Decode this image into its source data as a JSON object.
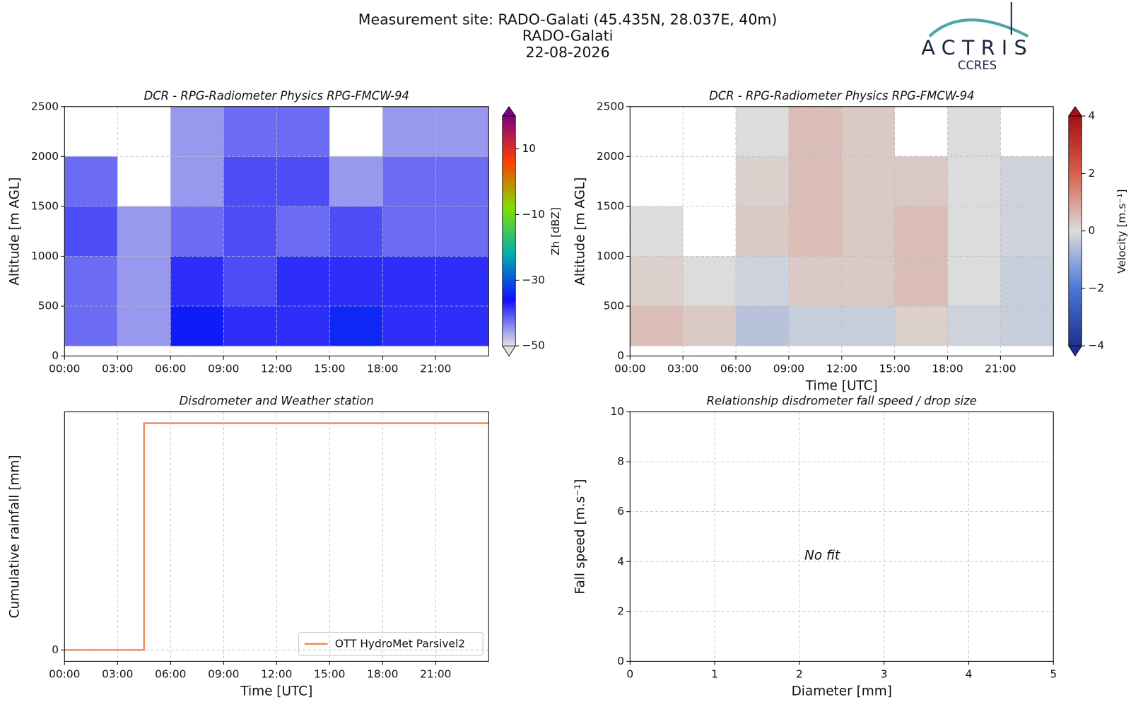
{
  "header": {
    "title": [
      "Measurement site: RADO-Galati (45.435N, 28.037E, 40m)",
      "RADO-Galati",
      "22-08-2026"
    ],
    "logo": "ACTRIS",
    "logo_subtitle": "CCRES"
  },
  "chart_data": [
    {
      "type": "heatmap",
      "title": "DCR - RPG-Radiometer Physics RPG-FMCW-94",
      "ylabel": "Altitude [m AGL]",
      "xlim": [
        0,
        24
      ],
      "xticks": [
        {
          "value": 0,
          "label": "00:00"
        },
        {
          "value": 3,
          "label": "03:00"
        },
        {
          "value": 6,
          "label": "06:00"
        },
        {
          "value": 9,
          "label": "09:00"
        },
        {
          "value": 12,
          "label": "12:00"
        },
        {
          "value": 15,
          "label": "15:00"
        },
        {
          "value": 18,
          "label": "18:00"
        },
        {
          "value": 21,
          "label": "21:00"
        }
      ],
      "ylim": [
        0,
        2500
      ],
      "yticks": [
        0,
        500,
        1000,
        1500,
        2000,
        2500
      ],
      "grid": true,
      "x_edges": [
        0,
        3,
        6,
        9,
        12,
        15,
        18,
        21,
        24
      ],
      "y_edges": [
        100,
        500,
        1000,
        1500,
        2000,
        2500
      ],
      "values": [
        [
          -42,
          -45,
          -35,
          -38,
          -38,
          -34,
          -38,
          -38
        ],
        [
          -42,
          -45,
          -38,
          -40,
          -38,
          -38,
          -38,
          -38
        ],
        [
          -40,
          -45,
          -42,
          -40,
          -42,
          -40,
          -42,
          -42
        ],
        [
          -42,
          null,
          -45,
          -40,
          -40,
          -45,
          -42,
          -42
        ],
        [
          null,
          null,
          -45,
          -42,
          -42,
          null,
          -45,
          -45
        ]
      ],
      "zlabel": "Zh [dBZ]",
      "zlim": [
        -50,
        20
      ],
      "zticks": [
        {
          "value": -50,
          "label": "−50"
        },
        {
          "value": -30,
          "label": "−30"
        },
        {
          "value": -10,
          "label": "−10"
        },
        10
      ],
      "colors": [
        "#e4e4e4",
        "#1010ff",
        "#00b0b0",
        "#80e000",
        "#ff4000",
        "#800080"
      ]
    },
    {
      "type": "heatmap",
      "title": "DCR - RPG-Radiometer Physics RPG-FMCW-94",
      "ylabel": "Altitude [m AGL]",
      "xlabel": "Time [UTC]",
      "xlim": [
        0,
        24
      ],
      "xticks": [
        {
          "value": 0,
          "label": "00:00"
        },
        {
          "value": 3,
          "label": "03:00"
        },
        {
          "value": 6,
          "label": "06:00"
        },
        {
          "value": 9,
          "label": "09:00"
        },
        {
          "value": 12,
          "label": "12:00"
        },
        {
          "value": 15,
          "label": "15:00"
        },
        {
          "value": 18,
          "label": "18:00"
        },
        {
          "value": 21,
          "label": "21:00"
        }
      ],
      "ylim": [
        0,
        2500
      ],
      "yticks": [
        0,
        500,
        1000,
        1500,
        2000,
        2500
      ],
      "grid": true,
      "x_edges": [
        0,
        3,
        6,
        9,
        12,
        15,
        18,
        21,
        24
      ],
      "y_edges": [
        100,
        500,
        1000,
        1500,
        2000,
        2500
      ],
      "values": [
        [
          0.5,
          0.3,
          -0.5,
          -0.3,
          -0.3,
          0.2,
          -0.2,
          -0.3
        ],
        [
          0.2,
          0,
          -0.2,
          0.3,
          0.3,
          0.5,
          0,
          -0.3
        ],
        [
          0,
          null,
          0.3,
          0.5,
          0.3,
          0.5,
          0,
          -0.2
        ],
        [
          null,
          null,
          0.2,
          0.5,
          0.3,
          0.3,
          0,
          -0.2
        ],
        [
          null,
          null,
          0,
          0.5,
          0.3,
          null,
          0,
          null
        ]
      ],
      "zlabel": "Velocity [m.s⁻¹]",
      "zlim": [
        -4,
        4
      ],
      "zticks": [
        {
          "value": -4,
          "label": "−4"
        },
        {
          "value": -2,
          "label": "−2"
        },
        0,
        2,
        4
      ],
      "colors": [
        "#1f2f8f",
        "#4a78d8",
        "#dcdcdc",
        "#d8604a",
        "#a50f15"
      ]
    },
    {
      "type": "line",
      "title": "Disdrometer and Weather station",
      "ylabel": "Cumulative rainfall [mm]",
      "xlabel": "Time [UTC]",
      "xlim": [
        0,
        24
      ],
      "xticks": [
        {
          "value": 0,
          "label": "00:00"
        },
        {
          "value": 3,
          "label": "03:00"
        },
        {
          "value": 6,
          "label": "06:00"
        },
        {
          "value": 9,
          "label": "09:00"
        },
        {
          "value": 12,
          "label": "12:00"
        },
        {
          "value": 15,
          "label": "15:00"
        },
        {
          "value": 18,
          "label": "18:00"
        },
        {
          "value": 21,
          "label": "21:00"
        }
      ],
      "ylim": [
        -0.01,
        0.21
      ],
      "yticks": [
        0
      ],
      "grid": true,
      "legend": "lower right",
      "x": [
        0,
        4.5,
        4.5,
        24
      ],
      "series": [
        {
          "name": "OTT HydroMet Parsivel2",
          "color": "#f08a5d",
          "values": [
            0,
            0,
            0.2,
            0.2
          ]
        }
      ]
    },
    {
      "type": "scatter",
      "title": "Relationship disdrometer fall speed / drop size",
      "ylabel": "Fall speed [m.s⁻¹]",
      "xlabel": "Diameter [mm]",
      "xlim": [
        0,
        5
      ],
      "xticks": [
        0,
        1,
        2,
        3,
        4,
        5
      ],
      "ylim": [
        0,
        10
      ],
      "yticks": [
        0,
        2,
        4,
        6,
        8,
        10
      ],
      "grid": true,
      "annotation": "No fit"
    }
  ]
}
